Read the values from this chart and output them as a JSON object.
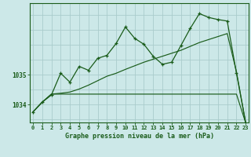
{
  "bg_color": "#cce8e8",
  "grid_color": "#aacccc",
  "line_color": "#1a5c1a",
  "title": "Graphe pression niveau de la mer (hPa)",
  "xlabel_ticks": [
    0,
    1,
    2,
    3,
    4,
    5,
    6,
    7,
    8,
    9,
    10,
    11,
    12,
    13,
    14,
    15,
    16,
    17,
    18,
    19,
    20,
    21,
    22,
    23
  ],
  "yticks": [
    1034,
    1035
  ],
  "ylim": [
    1033.4,
    1037.4
  ],
  "xlim": [
    -0.3,
    23.3
  ],
  "series1_x": [
    0,
    1,
    2,
    3,
    4,
    5,
    6,
    7,
    8,
    9,
    10,
    11,
    12,
    13,
    14,
    15,
    16,
    17,
    18,
    19,
    20,
    21,
    22,
    23
  ],
  "series1_y": [
    1033.75,
    1034.08,
    1034.32,
    1035.05,
    1034.75,
    1035.28,
    1035.15,
    1035.55,
    1035.65,
    1036.05,
    1036.6,
    1036.22,
    1036.02,
    1035.62,
    1035.35,
    1035.42,
    1035.98,
    1036.55,
    1037.05,
    1036.92,
    1036.85,
    1036.8,
    1035.05,
    1033.38
  ],
  "series2_x": [
    0,
    1,
    2,
    3,
    4,
    5,
    6,
    7,
    8,
    9,
    10,
    11,
    12,
    13,
    14,
    15,
    16,
    17,
    18,
    19,
    20,
    21,
    22,
    23
  ],
  "series2_y": [
    1033.75,
    1034.08,
    1034.35,
    1034.35,
    1034.35,
    1034.35,
    1034.35,
    1034.35,
    1034.35,
    1034.35,
    1034.35,
    1034.35,
    1034.35,
    1034.35,
    1034.35,
    1034.35,
    1034.35,
    1034.35,
    1034.35,
    1034.35,
    1034.35,
    1034.35,
    1034.35,
    1033.38
  ],
  "series3_x": [
    0,
    1,
    2,
    3,
    4,
    5,
    6,
    7,
    8,
    9,
    10,
    11,
    12,
    13,
    14,
    15,
    16,
    17,
    18,
    19,
    20,
    21,
    22,
    23
  ],
  "series3_y": [
    1033.75,
    1034.08,
    1034.35,
    1034.38,
    1034.42,
    1034.52,
    1034.65,
    1034.8,
    1034.95,
    1035.05,
    1035.18,
    1035.3,
    1035.42,
    1035.52,
    1035.62,
    1035.72,
    1035.82,
    1035.95,
    1036.08,
    1036.18,
    1036.28,
    1036.38,
    1035.1,
    1033.38
  ],
  "title_fontsize": 6,
  "tick_fontsize": 5,
  "ytick_fontsize": 5.5
}
